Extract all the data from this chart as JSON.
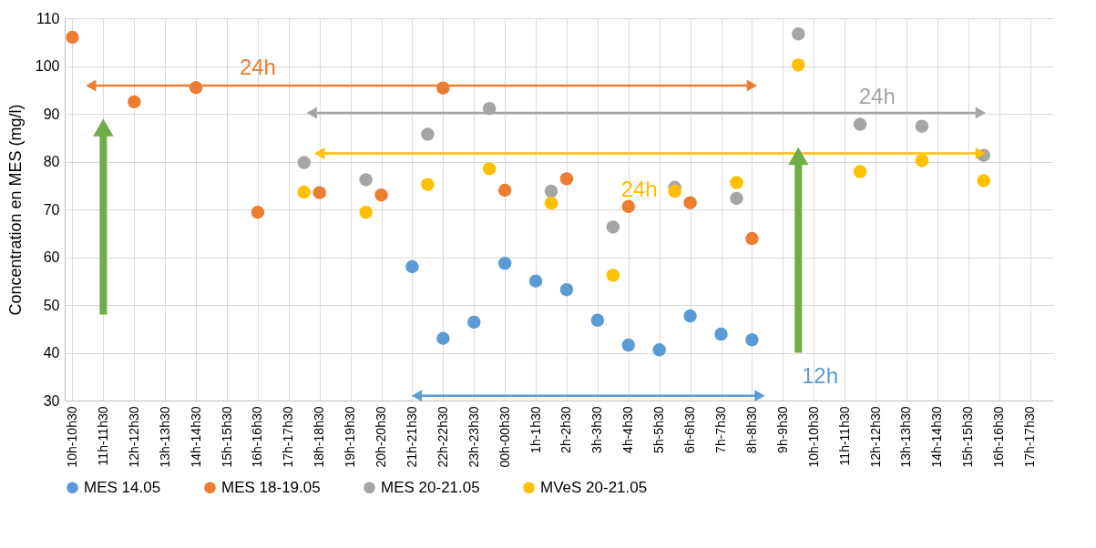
{
  "chart_data": {
    "type": "scatter",
    "ylabel": "Concentration en MES (mg/l)",
    "categories": [
      "10h-10h30",
      null,
      "11h-11h30",
      null,
      "12h-12h30",
      null,
      "13h-13h30",
      null,
      "14h-14h30",
      null,
      "15h-15h30",
      null,
      "16h-16h30",
      null,
      "17h-17h30",
      null,
      "18h-18h30",
      null,
      "19h-19h30",
      null,
      "20h-20h30",
      null,
      "21h-21h30",
      null,
      "22h-22h30",
      null,
      "23h-23h30",
      null,
      "00h-00h30",
      null,
      "1h-1h30",
      null,
      "2h-2h30",
      null,
      "3h-3h30",
      null,
      "4h-4h30",
      null,
      "5h-5h30",
      null,
      "6h-6h30",
      null,
      "7h-7h30",
      null,
      "8h-8h30",
      null,
      "9h-9h30",
      null,
      "10h-10h30",
      null,
      "11h-11h30",
      null,
      "12h-12h30",
      null,
      "13h-13h30",
      null,
      "14h-14h30",
      null,
      "15h-15h30",
      null,
      "16h-16h30",
      null,
      "17h-17h30",
      null
    ],
    "ylim": [
      30,
      110
    ],
    "yticks": [
      30,
      40,
      50,
      60,
      70,
      80,
      90,
      100,
      110
    ],
    "grid": true,
    "legend": "bottom",
    "marker": "circle",
    "series": [
      {
        "name": "MES 14.05",
        "color": "#5b9bd5",
        "values": [
          null,
          null,
          null,
          null,
          null,
          null,
          null,
          null,
          null,
          null,
          null,
          null,
          null,
          null,
          null,
          null,
          null,
          null,
          null,
          null,
          null,
          null,
          58.0,
          null,
          43.0,
          null,
          46.4,
          null,
          58.7,
          null,
          55.0,
          null,
          53.2,
          null,
          46.8,
          null,
          41.6,
          null,
          40.6,
          null,
          47.7,
          null,
          43.9,
          null,
          42.7,
          null,
          null,
          null,
          null,
          null,
          null,
          null,
          null,
          null,
          null,
          null,
          null,
          null,
          null,
          null,
          null,
          null,
          null,
          null
        ]
      },
      {
        "name": "MES 18-19.05",
        "color": "#ed7d31",
        "values": [
          106.0,
          null,
          null,
          null,
          92.5,
          null,
          null,
          null,
          95.5,
          null,
          null,
          null,
          69.4,
          null,
          null,
          null,
          73.5,
          null,
          null,
          null,
          73.0,
          null,
          null,
          null,
          95.4,
          null,
          null,
          null,
          74.0,
          null,
          null,
          null,
          76.4,
          null,
          null,
          null,
          70.6,
          null,
          null,
          null,
          71.4,
          null,
          null,
          null,
          63.9,
          null,
          null,
          null,
          null,
          null,
          null,
          null,
          null,
          null,
          null,
          null,
          null,
          null,
          null,
          null,
          null,
          null,
          null,
          null
        ]
      },
      {
        "name": "MES 20-21.05",
        "color": "#a5a5a5",
        "values": [
          null,
          null,
          null,
          null,
          null,
          null,
          null,
          null,
          null,
          null,
          null,
          null,
          null,
          null,
          null,
          79.8,
          null,
          null,
          null,
          76.2,
          null,
          null,
          null,
          85.7,
          null,
          null,
          null,
          91.1,
          null,
          null,
          null,
          73.8,
          null,
          null,
          null,
          66.3,
          null,
          null,
          null,
          74.6,
          null,
          null,
          null,
          72.3,
          null,
          null,
          null,
          106.7,
          null,
          null,
          null,
          87.8,
          null,
          null,
          null,
          87.4,
          null,
          null,
          null,
          81.3,
          null,
          null,
          null,
          null
        ]
      },
      {
        "name": "MVeS 20-21.05",
        "color": "#ffc000",
        "values": [
          null,
          null,
          null,
          null,
          null,
          null,
          null,
          null,
          null,
          null,
          null,
          null,
          null,
          null,
          null,
          73.6,
          null,
          null,
          null,
          69.4,
          null,
          null,
          null,
          75.2,
          null,
          null,
          null,
          78.5,
          null,
          null,
          null,
          71.3,
          null,
          null,
          null,
          56.2,
          null,
          null,
          null,
          73.8,
          null,
          null,
          null,
          75.6,
          null,
          null,
          null,
          100.2,
          null,
          null,
          null,
          77.9,
          null,
          null,
          null,
          80.2,
          null,
          null,
          null,
          76.0,
          null,
          null,
          null,
          null
        ]
      }
    ],
    "annotations": [
      "12h",
      "24h",
      "24h",
      "24h"
    ]
  }
}
